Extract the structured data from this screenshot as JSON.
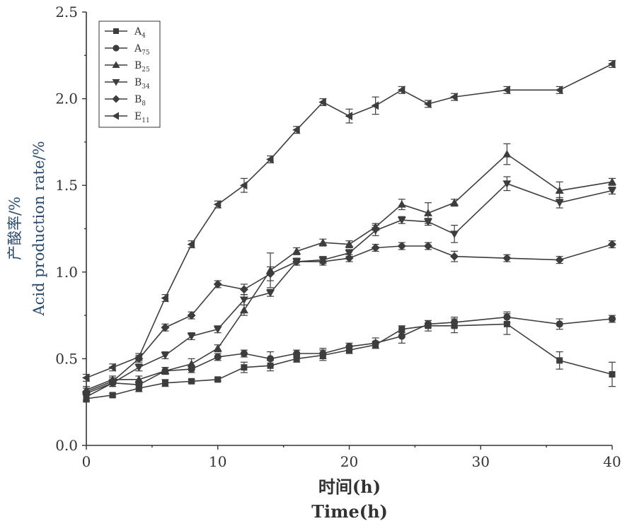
{
  "chart_data": {
    "type": "line",
    "xlabel": [
      "时间(h)",
      "Time(h)"
    ],
    "ylabel": [
      "产酸率/%",
      "Acid production rate/%"
    ],
    "xlim": [
      0,
      40
    ],
    "ylim": [
      0,
      2.5
    ],
    "xticks": [
      "0",
      "10",
      "20",
      "30",
      "40"
    ],
    "yticks": [
      "0.0",
      "0.5",
      "1.0",
      "1.5",
      "2.0",
      "2.5"
    ],
    "grid": false,
    "legend": "top-left",
    "series": [
      {
        "name": "A4",
        "base": "A",
        "sub": "4",
        "marker": "square",
        "color": "#3d3d3d",
        "x": [
          0,
          2,
          4,
          6,
          8,
          10,
          12,
          14,
          16,
          18,
          20,
          22,
          24,
          26,
          28,
          32,
          36,
          40
        ],
        "y": [
          0.27,
          0.29,
          0.33,
          0.36,
          0.37,
          0.38,
          0.45,
          0.46,
          0.5,
          0.52,
          0.55,
          0.58,
          0.67,
          0.69,
          0.69,
          0.7,
          0.49,
          0.41
        ],
        "err": [
          0.02,
          0.01,
          0.02,
          0.02,
          0.01,
          0.01,
          0.03,
          0.03,
          0.02,
          0.03,
          0.02,
          0.02,
          0.02,
          0.03,
          0.04,
          0.06,
          0.05,
          0.07
        ]
      },
      {
        "name": "A75",
        "base": "A",
        "sub": "75",
        "marker": "circle",
        "color": "#3d3d3d",
        "x": [
          0,
          2,
          4,
          6,
          8,
          10,
          12,
          14,
          16,
          18,
          20,
          22,
          24,
          26,
          28,
          32,
          36,
          40
        ],
        "y": [
          0.3,
          0.36,
          0.35,
          0.43,
          0.44,
          0.51,
          0.53,
          0.5,
          0.53,
          0.53,
          0.57,
          0.59,
          0.63,
          0.7,
          0.71,
          0.74,
          0.7,
          0.73
        ],
        "err": [
          0.01,
          0.02,
          0.02,
          0.02,
          0.02,
          0.02,
          0.02,
          0.04,
          0.02,
          0.03,
          0.02,
          0.03,
          0.04,
          0.02,
          0.03,
          0.03,
          0.03,
          0.02
        ]
      },
      {
        "name": "B25",
        "base": "B",
        "sub": "25",
        "marker": "triangle-up",
        "color": "#3d3d3d",
        "x": [
          0,
          2,
          4,
          6,
          8,
          10,
          12,
          14,
          16,
          18,
          20,
          22,
          24,
          26,
          28,
          32,
          36,
          40
        ],
        "y": [
          0.32,
          0.38,
          0.38,
          0.43,
          0.47,
          0.56,
          0.78,
          1.01,
          1.12,
          1.17,
          1.16,
          1.26,
          1.39,
          1.34,
          1.4,
          1.68,
          1.47,
          1.52
        ],
        "err": [
          0.02,
          0.02,
          0.02,
          0.02,
          0.03,
          0.02,
          0.03,
          0.1,
          0.02,
          0.02,
          0.02,
          0.02,
          0.03,
          0.06,
          0.02,
          0.06,
          0.05,
          0.02
        ]
      },
      {
        "name": "B34",
        "base": "B",
        "sub": "34",
        "marker": "triangle-down",
        "color": "#3d3d3d",
        "x": [
          0,
          2,
          4,
          6,
          8,
          10,
          12,
          14,
          16,
          18,
          20,
          22,
          24,
          26,
          28,
          32,
          36,
          40
        ],
        "y": [
          0.28,
          0.36,
          0.45,
          0.52,
          0.63,
          0.67,
          0.84,
          0.88,
          1.06,
          1.07,
          1.11,
          1.24,
          1.3,
          1.29,
          1.22,
          1.51,
          1.4,
          1.47
        ],
        "err": [
          0.02,
          0.02,
          0.02,
          0.02,
          0.02,
          0.02,
          0.03,
          0.02,
          0.02,
          0.02,
          0.02,
          0.03,
          0.02,
          0.02,
          0.05,
          0.04,
          0.03,
          0.02
        ]
      },
      {
        "name": "B8",
        "base": "B",
        "sub": "8",
        "marker": "diamond",
        "color": "#3d3d3d",
        "x": [
          0,
          2,
          4,
          6,
          8,
          10,
          12,
          14,
          16,
          18,
          20,
          22,
          24,
          26,
          28,
          32,
          36,
          40
        ],
        "y": [
          0.31,
          0.37,
          0.5,
          0.68,
          0.75,
          0.93,
          0.9,
          0.99,
          1.06,
          1.06,
          1.08,
          1.14,
          1.15,
          1.15,
          1.09,
          1.08,
          1.07,
          1.16
        ],
        "err": [
          0.02,
          0.02,
          0.02,
          0.02,
          0.02,
          0.02,
          0.03,
          0.04,
          0.02,
          0.02,
          0.02,
          0.02,
          0.02,
          0.02,
          0.03,
          0.02,
          0.02,
          0.02
        ]
      },
      {
        "name": "E11",
        "base": "E",
        "sub": "11",
        "marker": "triangle-left",
        "color": "#3d3d3d",
        "x": [
          0,
          2,
          4,
          6,
          8,
          10,
          12,
          14,
          16,
          18,
          20,
          22,
          24,
          26,
          28,
          32,
          36,
          40
        ],
        "y": [
          0.39,
          0.45,
          0.51,
          0.85,
          1.16,
          1.39,
          1.5,
          1.65,
          1.82,
          1.98,
          1.9,
          1.96,
          2.05,
          1.97,
          2.01,
          2.05,
          2.05,
          2.2
        ],
        "err": [
          0.02,
          0.02,
          0.02,
          0.02,
          0.02,
          0.02,
          0.04,
          0.02,
          0.02,
          0.02,
          0.04,
          0.05,
          0.02,
          0.02,
          0.02,
          0.02,
          0.02,
          0.02
        ]
      }
    ]
  }
}
